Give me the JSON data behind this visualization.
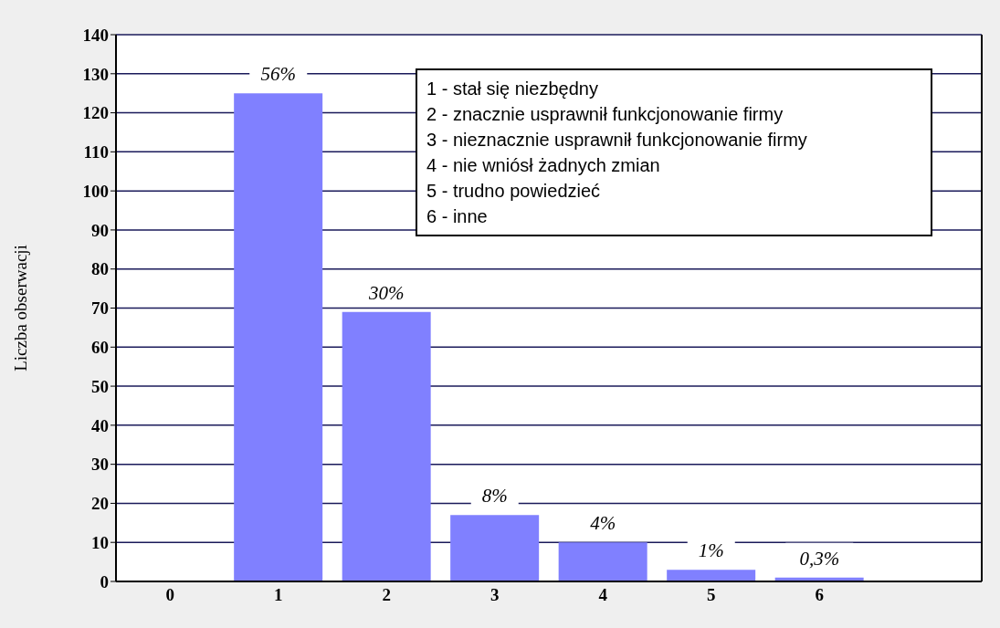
{
  "chart_data": {
    "type": "bar",
    "ylabel": "Liczba obserwacji",
    "categories": [
      "0",
      "1",
      "2",
      "3",
      "4",
      "5",
      "6",
      null
    ],
    "values": [
      0,
      125,
      69,
      17,
      10,
      3,
      1,
      null
    ],
    "color": "#8080ff",
    "ylim": [
      0,
      140
    ],
    "yticks": [
      0,
      10,
      20,
      30,
      40,
      50,
      60,
      70,
      80,
      90,
      100,
      110,
      120,
      130,
      140
    ],
    "grid": "y",
    "annotations": [
      {
        "text": "56%",
        "x": "1",
        "y": 125
      },
      {
        "text": "30%",
        "x": "2",
        "y": 69
      },
      {
        "text": "8%",
        "x": "3",
        "y": 17
      },
      {
        "text": "4%",
        "x": "4",
        "y": 10
      },
      {
        "text": "1%",
        "x": "5",
        "y": 3
      },
      {
        "text": "0,3%",
        "x": "6",
        "y": 1
      },
      "1 - stał się niezbędny",
      "2 - znacznie usprawnił funkcjonowanie firmy",
      "3 - nieznacznie usprawnił funkcjonowanie firmy",
      "4 - nie wniósł żadnych zmian",
      "5 - trudno powiedzieć",
      "6 - inne"
    ]
  }
}
